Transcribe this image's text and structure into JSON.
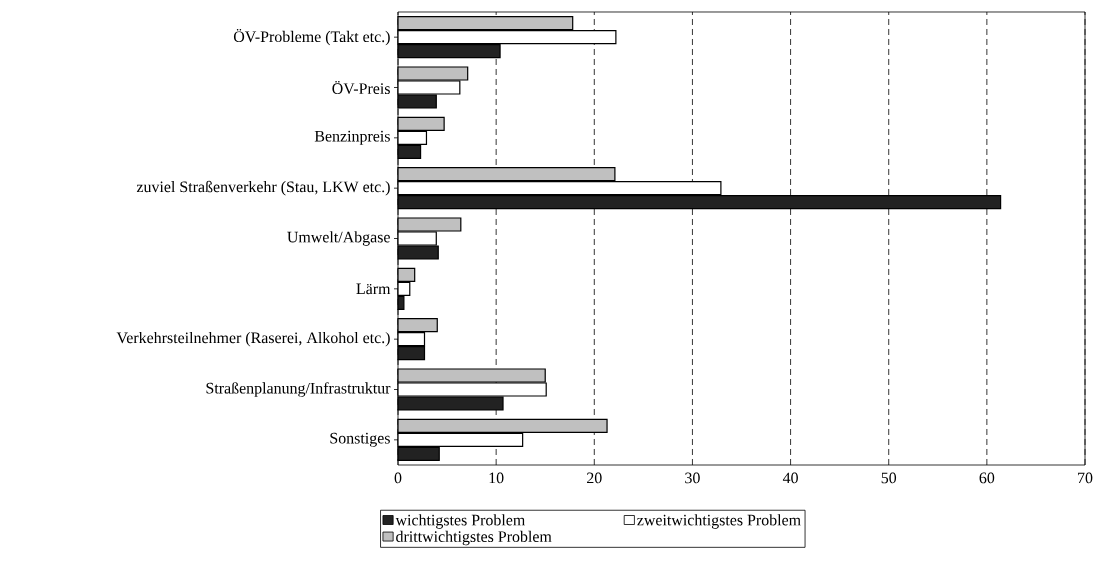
{
  "chart_data": {
    "type": "bar",
    "orientation": "horizontal",
    "categories": [
      "ÖV-Probleme (Takt etc.)",
      "ÖV-Preis",
      "Benzinpreis",
      "zuviel Straßenverkehr (Stau, LKW etc.)",
      "Umwelt/Abgase",
      "Lärm",
      "Verkehrsteilnehmer (Raserei, Alkohol etc.)",
      "Straßenplanung/Infrastruktur",
      "Sonstiges"
    ],
    "series": [
      {
        "name": "wichtigstes Problem",
        "color": "#222222",
        "values": [
          10.4,
          3.9,
          2.3,
          61.4,
          4.1,
          0.6,
          2.7,
          10.7,
          4.2
        ]
      },
      {
        "name": "zweitwichtigstes Problem",
        "color": "#ffffff",
        "values": [
          22.2,
          6.3,
          2.9,
          32.9,
          3.9,
          1.2,
          2.7,
          15.1,
          12.7
        ]
      },
      {
        "name": "drittwichtigstes Problem",
        "color": "#c0c0c0",
        "values": [
          17.8,
          7.1,
          4.7,
          22.1,
          6.4,
          1.7,
          4.0,
          15.0,
          21.3
        ]
      }
    ],
    "xlim": [
      0,
      70
    ],
    "xticks": [
      0,
      10,
      20,
      30,
      40,
      50,
      60,
      70
    ],
    "grid": "x",
    "legend": "bottom"
  }
}
